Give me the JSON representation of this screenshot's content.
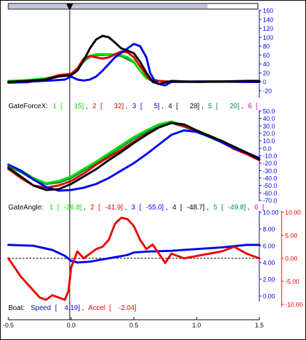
{
  "colors": {
    "s1": "#00dd00",
    "s2": "#dd0000",
    "s3": "#0000ee",
    "s4": "#000000",
    "s5": "#008844",
    "s6": "#cc00cc",
    "speed": "#0000ee",
    "accel": "#ee0000",
    "scrollbar": "#bfc6e6"
  },
  "scrollbar": {
    "position": 0.8
  },
  "charts": {
    "force": {
      "label": "GateForceX:",
      "entries": [
        {
          "num": "1",
          "open": "[",
          "value": "15]",
          "sep": ","
        },
        {
          "num": "2",
          "open": "[",
          "value": "32]",
          "sep": ","
        },
        {
          "num": "3",
          "open": "[",
          "value": "5]",
          "sep": ","
        },
        {
          "num": "4",
          "open": "[",
          "value": "28]",
          "sep": ","
        },
        {
          "num": "5",
          "open": "[",
          "value": "20]",
          "sep": ","
        },
        {
          "num": "6",
          "open": "[",
          "value": "",
          "sep": ""
        }
      ],
      "ticks": [
        "160",
        "140",
        "120",
        "100",
        "80",
        "60",
        "40",
        "20",
        "0",
        "-20"
      ]
    },
    "angle": {
      "label": "GateAngle:",
      "entries": [
        {
          "num": "1",
          "open": "[",
          "value": "-36.8]",
          "sep": ","
        },
        {
          "num": "2",
          "open": "[",
          "value": "-41.9]",
          "sep": ","
        },
        {
          "num": "3",
          "open": "[",
          "value": "-55.0]",
          "sep": ","
        },
        {
          "num": "4",
          "open": "[",
          "value": "-48.7]",
          "sep": ","
        },
        {
          "num": "5",
          "open": "[",
          "value": "-49.8]",
          "sep": ","
        },
        {
          "num": "6",
          "open": "[",
          "value": "",
          "sep": ""
        }
      ],
      "ticks": [
        "50.0",
        "40.0",
        "30.0",
        "20.0",
        "10.0",
        "0.0",
        "-10.0",
        "-20.0",
        "-30.0",
        "-40.0",
        "-50.0",
        "-60.0",
        "-70.0"
      ]
    },
    "boat": {
      "label": "Boat:",
      "speed_name": "Speed",
      "speed_open": "[",
      "speed_value": "4.19]",
      "accel_name": "Accel",
      "accel_open": "[",
      "accel_value": "-2.04]",
      "left_ticks": [
        "10.00",
        "8.00",
        "6.00",
        "4.00",
        "2.00",
        "0.00"
      ],
      "right_ticks": [
        "10.00",
        "5.00",
        "0.00",
        "-5.00",
        "-10.00"
      ]
    },
    "x_ticks": [
      "-0.5",
      "0.0",
      "0.5",
      "1.0",
      "1.5"
    ]
  },
  "chart_data": [
    {
      "type": "line",
      "title": "GateForceX",
      "xlim": [
        -0.5,
        1.5
      ],
      "ylim": [
        -20,
        160
      ],
      "series": [
        {
          "name": "1",
          "color": "#00dd00",
          "x": [
            -0.5,
            -0.35,
            -0.2,
            -0.1,
            0,
            0.05,
            0.1,
            0.15,
            0.2,
            0.3,
            0.4,
            0.45,
            0.5,
            0.55,
            0.6,
            0.7,
            0.8,
            0.9,
            1.0,
            1.2,
            1.4,
            1.5
          ],
          "y": [
            2,
            4,
            8,
            14,
            18,
            30,
            48,
            58,
            62,
            62,
            60,
            55,
            45,
            25,
            8,
            2,
            0,
            0,
            1,
            1,
            0,
            0
          ]
        },
        {
          "name": "2",
          "color": "#dd0000",
          "x": [
            -0.5,
            -0.35,
            -0.2,
            -0.1,
            0,
            0.05,
            0.1,
            0.15,
            0.2,
            0.25,
            0.3,
            0.35,
            0.4,
            0.45,
            0.5,
            0.55,
            0.6,
            0.63,
            0.7,
            0.8,
            1.0,
            1.2,
            1.4,
            1.5
          ],
          "y": [
            -2,
            -1,
            6,
            15,
            18,
            30,
            52,
            58,
            55,
            52,
            55,
            62,
            68,
            66,
            55,
            35,
            15,
            4,
            2,
            0,
            0,
            0,
            0,
            0
          ]
        },
        {
          "name": "3",
          "color": "#0000ee",
          "x": [
            -0.5,
            -0.3,
            -0.15,
            -0.05,
            0,
            0.05,
            0.1,
            0.15,
            0.2,
            0.25,
            0.3,
            0.35,
            0.4,
            0.45,
            0.5,
            0.55,
            0.6,
            0.63,
            0.66,
            0.7,
            0.75,
            0.8,
            1.0,
            1.2,
            1.4,
            1.5
          ],
          "y": [
            -1,
            1,
            3,
            5,
            12,
            5,
            3,
            5,
            12,
            25,
            40,
            55,
            65,
            75,
            85,
            80,
            55,
            20,
            5,
            -5,
            -8,
            0,
            1,
            1,
            0,
            0
          ]
        },
        {
          "name": "4",
          "color": "#000000",
          "x": [
            -0.5,
            -0.35,
            -0.2,
            -0.1,
            0,
            0.05,
            0.1,
            0.15,
            0.2,
            0.25,
            0.3,
            0.35,
            0.4,
            0.45,
            0.5,
            0.55,
            0.6,
            0.65,
            0.7,
            0.8,
            1.0,
            1.2,
            1.4,
            1.5
          ],
          "y": [
            0,
            2,
            5,
            12,
            15,
            25,
            48,
            75,
            95,
            103,
            100,
            88,
            75,
            70,
            64,
            45,
            20,
            0,
            -5,
            2,
            0,
            1,
            2,
            2
          ]
        },
        {
          "name": "5",
          "color": "#008844",
          "x": [
            -0.5,
            -0.35,
            -0.2,
            -0.1,
            0,
            0.05,
            0.1,
            0.15,
            0.2,
            0.3,
            0.4,
            0.5,
            0.55,
            0.6,
            0.7,
            0.8,
            1.0,
            1.2,
            1.4,
            1.5
          ],
          "y": [
            1,
            3,
            7,
            13,
            17,
            28,
            46,
            56,
            60,
            61,
            58,
            44,
            25,
            8,
            2,
            0,
            0,
            1,
            0,
            0
          ]
        }
      ]
    },
    {
      "type": "line",
      "title": "GateAngle",
      "xlim": [
        -0.5,
        1.5
      ],
      "ylim": [
        -70,
        50
      ],
      "series": [
        {
          "name": "1",
          "color": "#00dd00",
          "x": [
            -0.5,
            -0.4,
            -0.3,
            -0.2,
            -0.1,
            0,
            0.1,
            0.2,
            0.3,
            0.4,
            0.5,
            0.6,
            0.7,
            0.8,
            0.9,
            1.0,
            1.1,
            1.2,
            1.3,
            1.4,
            1.5
          ],
          "y": [
            -23,
            -30,
            -40,
            -47,
            -44,
            -38,
            -28,
            -18,
            -7,
            4,
            15,
            24,
            32,
            36,
            30,
            22,
            15,
            8,
            0,
            -7,
            -15
          ]
        },
        {
          "name": "2",
          "color": "#dd0000",
          "x": [
            -0.5,
            -0.4,
            -0.3,
            -0.2,
            -0.1,
            0,
            0.1,
            0.2,
            0.3,
            0.4,
            0.5,
            0.6,
            0.7,
            0.8,
            0.9,
            1.0,
            1.1,
            1.2,
            1.3,
            1.4,
            1.5
          ],
          "y": [
            -28,
            -40,
            -50,
            -53,
            -50,
            -44,
            -34,
            -22,
            -12,
            -2,
            9,
            19,
            28,
            34,
            30,
            23,
            16,
            8,
            -1,
            -8,
            -16
          ]
        },
        {
          "name": "3",
          "color": "#0000ee",
          "x": [
            -0.5,
            -0.4,
            -0.3,
            -0.2,
            -0.1,
            0,
            0.1,
            0.2,
            0.3,
            0.4,
            0.5,
            0.6,
            0.7,
            0.8,
            0.9,
            1.0,
            1.1,
            1.2,
            1.3,
            1.4,
            1.5
          ],
          "y": [
            -22,
            -30,
            -42,
            -52,
            -57,
            -56,
            -53,
            -48,
            -40,
            -30,
            -20,
            -8,
            5,
            18,
            24,
            22,
            16,
            8,
            0,
            -6,
            -13
          ]
        },
        {
          "name": "4",
          "color": "#000000",
          "x": [
            -0.5,
            -0.4,
            -0.3,
            -0.2,
            -0.1,
            0,
            0.1,
            0.2,
            0.3,
            0.4,
            0.5,
            0.6,
            0.7,
            0.8,
            0.9,
            1.0,
            1.1,
            1.2,
            1.3,
            1.4,
            1.5
          ],
          "y": [
            -26,
            -38,
            -50,
            -56,
            -55,
            -48,
            -38,
            -28,
            -16,
            -5,
            7,
            18,
            28,
            34,
            32,
            24,
            17,
            10,
            2,
            -6,
            -15
          ]
        },
        {
          "name": "5",
          "color": "#008844",
          "x": [
            -0.5,
            -0.4,
            -0.3,
            -0.2,
            -0.1,
            0,
            0.1,
            0.2,
            0.3,
            0.4,
            0.5,
            0.6,
            0.7,
            0.8,
            0.9,
            1.0,
            1.1,
            1.2,
            1.3,
            1.4,
            1.5
          ],
          "y": [
            -24,
            -32,
            -42,
            -48,
            -46,
            -40,
            -30,
            -19,
            -9,
            2,
            13,
            22,
            30,
            34,
            29,
            22,
            15,
            8,
            0,
            -7,
            -15
          ]
        }
      ]
    },
    {
      "type": "line",
      "title": "Boat",
      "xlim": [
        -0.5,
        1.5
      ],
      "ylim_left": [
        -1.5,
        10
      ],
      "ylim_right": [
        -10,
        10
      ],
      "series": [
        {
          "name": "Speed",
          "color": "#0000ee",
          "axis": "left",
          "x": [
            -0.5,
            -0.3,
            -0.15,
            -0.05,
            0,
            0.05,
            0.15,
            0.3,
            0.45,
            0.5,
            0.6,
            0.8,
            1.0,
            1.2,
            1.4,
            1.5
          ],
          "y": [
            6.1,
            6.0,
            5.5,
            4.8,
            4.2,
            4.0,
            4.1,
            4.5,
            4.9,
            5.2,
            5.3,
            5.4,
            5.6,
            5.8,
            6.1,
            6.1
          ]
        },
        {
          "name": "Accel",
          "color": "#ee0000",
          "axis": "right",
          "x": [
            -0.5,
            -0.45,
            -0.4,
            -0.35,
            -0.3,
            -0.25,
            -0.2,
            -0.15,
            -0.1,
            -0.05,
            -0.02,
            0,
            0.05,
            0.1,
            0.15,
            0.2,
            0.25,
            0.3,
            0.35,
            0.4,
            0.45,
            0.5,
            0.55,
            0.6,
            0.65,
            0.7,
            0.75,
            0.8,
            0.9,
            1.0,
            1.1,
            1.2,
            1.3,
            1.4,
            1.5
          ],
          "y": [
            0,
            -2,
            -4,
            -5.5,
            -7,
            -8.5,
            -9,
            -8,
            -8.5,
            -9,
            -7,
            -2,
            1.5,
            0,
            1,
            2,
            2.5,
            4,
            7.5,
            8.8,
            8.5,
            7,
            4,
            2,
            3,
            1,
            -1,
            1,
            0,
            0.5,
            1,
            1.5,
            2.5,
            1,
            0
          ]
        }
      ]
    }
  ]
}
